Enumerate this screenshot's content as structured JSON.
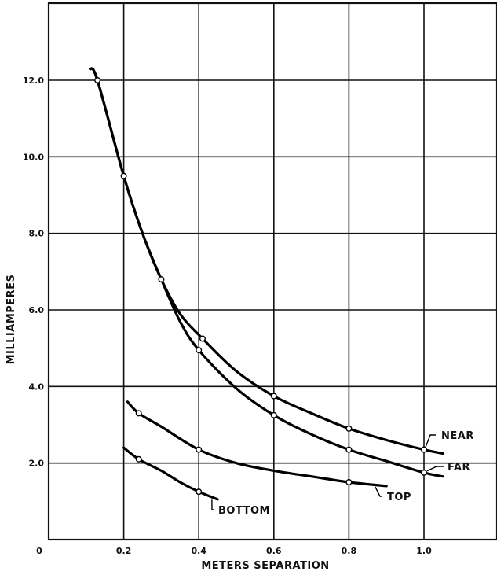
{
  "chart_data": {
    "type": "line",
    "title": "",
    "xlabel": "METERS SEPARATION",
    "ylabel": "MILLIAMPERES",
    "xlim": [
      0,
      1.2
    ],
    "ylim": [
      0,
      14
    ],
    "grid": true,
    "x_ticks": [
      {
        "value": 0,
        "label": "0"
      },
      {
        "value": 0.2,
        "label": "0.2"
      },
      {
        "value": 0.4,
        "label": "0.4"
      },
      {
        "value": 0.6,
        "label": "0.6"
      },
      {
        "value": 0.8,
        "label": "0.8"
      },
      {
        "value": 1.0,
        "label": "1.0"
      }
    ],
    "y_ticks": [
      {
        "value": 0,
        "label": "0"
      },
      {
        "value": 2,
        "label": "2.0"
      },
      {
        "value": 4,
        "label": "4.0"
      },
      {
        "value": 6,
        "label": "6.0"
      },
      {
        "value": 8,
        "label": "8.0"
      },
      {
        "value": 10,
        "label": "10.0"
      },
      {
        "value": 12,
        "label": "12.0"
      }
    ],
    "series": [
      {
        "name": "NEAR",
        "curve": [
          [
            0.11,
            12.3
          ],
          [
            0.13,
            12.0
          ],
          [
            0.2,
            9.5
          ],
          [
            0.25,
            8.0
          ],
          [
            0.3,
            6.8
          ],
          [
            0.35,
            5.9
          ],
          [
            0.41,
            5.25
          ],
          [
            0.5,
            4.4
          ],
          [
            0.6,
            3.75
          ],
          [
            0.7,
            3.3
          ],
          [
            0.8,
            2.9
          ],
          [
            0.9,
            2.6
          ],
          [
            1.0,
            2.35
          ],
          [
            1.05,
            2.25
          ]
        ],
        "points": [
          [
            0.13,
            12.0
          ],
          [
            0.2,
            9.5
          ],
          [
            0.3,
            6.8
          ],
          [
            0.41,
            5.25
          ],
          [
            0.6,
            3.75
          ],
          [
            0.8,
            2.9
          ],
          [
            1.0,
            2.35
          ]
        ]
      },
      {
        "name": "FAR",
        "curve": [
          [
            0.11,
            12.3
          ],
          [
            0.13,
            12.0
          ],
          [
            0.2,
            9.5
          ],
          [
            0.25,
            8.0
          ],
          [
            0.3,
            6.8
          ],
          [
            0.35,
            5.7
          ],
          [
            0.4,
            4.95
          ],
          [
            0.5,
            3.95
          ],
          [
            0.6,
            3.25
          ],
          [
            0.7,
            2.75
          ],
          [
            0.8,
            2.35
          ],
          [
            0.9,
            2.05
          ],
          [
            1.0,
            1.75
          ],
          [
            1.05,
            1.65
          ]
        ],
        "points": [
          [
            0.4,
            4.95
          ],
          [
            0.6,
            3.25
          ],
          [
            0.8,
            2.35
          ],
          [
            1.0,
            1.75
          ]
        ]
      },
      {
        "name": "TOP",
        "curve": [
          [
            0.21,
            3.6
          ],
          [
            0.24,
            3.3
          ],
          [
            0.3,
            2.95
          ],
          [
            0.4,
            2.35
          ],
          [
            0.5,
            2.0
          ],
          [
            0.6,
            1.8
          ],
          [
            0.7,
            1.65
          ],
          [
            0.8,
            1.5
          ],
          [
            0.9,
            1.4
          ]
        ],
        "points": [
          [
            0.24,
            3.3
          ],
          [
            0.4,
            2.35
          ],
          [
            0.8,
            1.5
          ]
        ]
      },
      {
        "name": "BOTTOM",
        "curve": [
          [
            0.2,
            2.4
          ],
          [
            0.24,
            2.1
          ],
          [
            0.3,
            1.8
          ],
          [
            0.35,
            1.5
          ],
          [
            0.4,
            1.25
          ],
          [
            0.45,
            1.05
          ]
        ],
        "points": [
          [
            0.24,
            2.1
          ],
          [
            0.4,
            1.25
          ]
        ]
      }
    ]
  }
}
